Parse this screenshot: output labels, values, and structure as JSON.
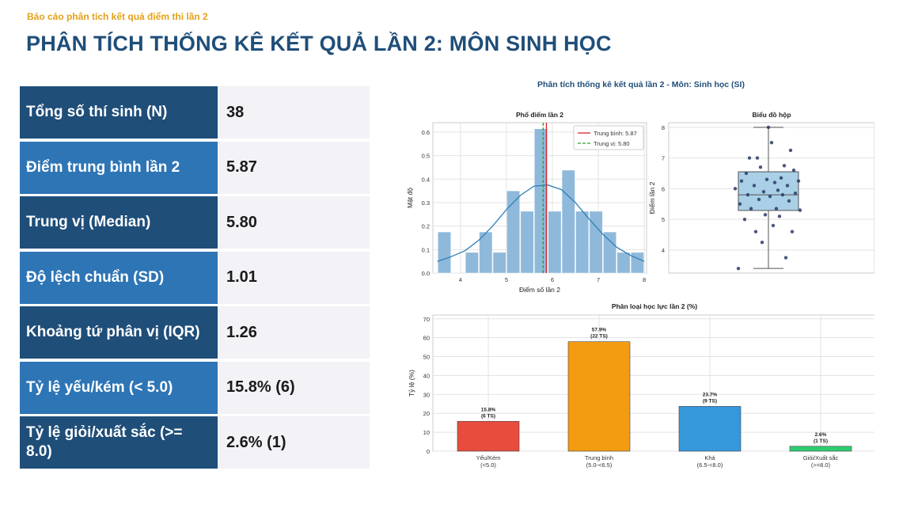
{
  "header": {
    "subtitle": "Báo cáo phân tích kết quả điểm thi lần 2",
    "title": "PHÂN TÍCH THỐNG KÊ KẾT QUẢ LẦN 2: MÔN SINH HỌC"
  },
  "stats": [
    {
      "label": "Tổng số thí sinh (N)",
      "value": "38",
      "tone": "dark"
    },
    {
      "label": "Điểm trung bình lần 2",
      "value": "5.87",
      "tone": "light"
    },
    {
      "label": "Trung vị (Median)",
      "value": "5.80",
      "tone": "dark"
    },
    {
      "label": "Độ lệch chuẩn (SD)",
      "value": "1.01",
      "tone": "light"
    },
    {
      "label": "Khoảng tứ phân vị (IQR)",
      "value": "1.26",
      "tone": "dark"
    },
    {
      "label": "Tỷ lệ yếu/kém (< 5.0)",
      "value": "15.8% (6)",
      "tone": "light"
    },
    {
      "label": "Tỷ lệ giỏi/xuất sắc (>= 8.0)",
      "value": "2.6% (1)",
      "tone": "dark"
    }
  ],
  "figure_title": "Phân tích thống kê kết quả lần 2 - Môn: Sinh học (SI)",
  "colors": {
    "dark": "#1f4e79",
    "light": "#2e75b6",
    "hist": "#8fb9da",
    "kde": "#2f7fb5",
    "mean": "#d62728",
    "median": "#2ca02c",
    "box": "#a9d0e6"
  },
  "chart_data": [
    {
      "type": "bar",
      "subtype": "histogram",
      "title": "Phổ điểm lần 2",
      "xlabel": "Điểm số lần 2",
      "ylabel": "Mật độ",
      "xlim": [
        3.4,
        8.05
      ],
      "ylim": [
        0,
        0.64
      ],
      "xticks": [
        4,
        5,
        6,
        7,
        8
      ],
      "yticks": [
        0.0,
        0.1,
        0.2,
        0.3,
        0.4,
        0.5,
        0.6
      ],
      "bin_edges": [
        3.5,
        3.8,
        4.1,
        4.4,
        4.7,
        5.0,
        5.3,
        5.6,
        5.9,
        6.2,
        6.5,
        6.8,
        7.1,
        7.4,
        7.7,
        8.0
      ],
      "density": [
        0.175,
        0.0,
        0.088,
        0.175,
        0.088,
        0.35,
        0.263,
        0.614,
        0.263,
        0.438,
        0.263,
        0.263,
        0.175,
        0.088,
        0.088
      ],
      "kde": {
        "x": [
          3.5,
          3.8,
          4.1,
          4.4,
          4.7,
          5.0,
          5.3,
          5.6,
          5.9,
          6.2,
          6.5,
          6.8,
          7.1,
          7.4,
          7.7,
          8.0
        ],
        "y": [
          0.05,
          0.07,
          0.095,
          0.14,
          0.2,
          0.27,
          0.33,
          0.37,
          0.375,
          0.355,
          0.3,
          0.23,
          0.165,
          0.11,
          0.075,
          0.05
        ]
      },
      "mean": 5.87,
      "median": 5.8,
      "legend": [
        "Trung bình: 5.87",
        "Trung vị: 5.80"
      ],
      "legend_position": "top-right",
      "grid": true
    },
    {
      "type": "box",
      "title": "Biểu đồ hộp",
      "ylabel": "Điểm lần 2",
      "ylim": [
        3.25,
        8.15
      ],
      "yticks": [
        4,
        5,
        6,
        7,
        8
      ],
      "q1": 5.29,
      "median": 5.8,
      "q3": 6.55,
      "whisker_low": 3.4,
      "whisker_high": 8.0,
      "points": [
        3.4,
        3.75,
        4.25,
        4.6,
        4.6,
        4.8,
        5.0,
        5.1,
        5.15,
        5.3,
        5.35,
        5.35,
        5.5,
        5.6,
        5.65,
        5.75,
        5.8,
        5.8,
        5.85,
        5.9,
        5.95,
        6.0,
        6.1,
        6.1,
        6.2,
        6.25,
        6.25,
        6.3,
        6.35,
        6.5,
        6.6,
        6.7,
        6.75,
        7.0,
        7.0,
        7.25,
        7.5,
        8.0
      ],
      "grid": true
    },
    {
      "type": "bar",
      "title": "Phân loại học lực lần 2 (%)",
      "ylabel": "Tỷ lệ (%)",
      "ylim": [
        0,
        72
      ],
      "yticks": [
        0,
        10,
        20,
        30,
        40,
        50,
        60,
        70
      ],
      "categories": [
        {
          "name": "Yếu/Kém",
          "range": "(<5.0)"
        },
        {
          "name": "Trung bình",
          "range": "(5.0-<6.5)"
        },
        {
          "name": "Khá",
          "range": "(6.5-<8.0)"
        },
        {
          "name": "Giỏi/Xuất sắc",
          "range": "(>=8.0)"
        }
      ],
      "values": [
        15.8,
        57.9,
        23.7,
        2.6
      ],
      "value_labels": [
        "15.8%",
        "57.9%",
        "23.7%",
        "2.6%"
      ],
      "count_labels": [
        "(6 TS)",
        "(22 TS)",
        "(9 TS)",
        "(1 TS)"
      ],
      "colors": [
        "#e74c3c",
        "#f39c12",
        "#3498db",
        "#2ecc71"
      ],
      "grid": true
    }
  ]
}
